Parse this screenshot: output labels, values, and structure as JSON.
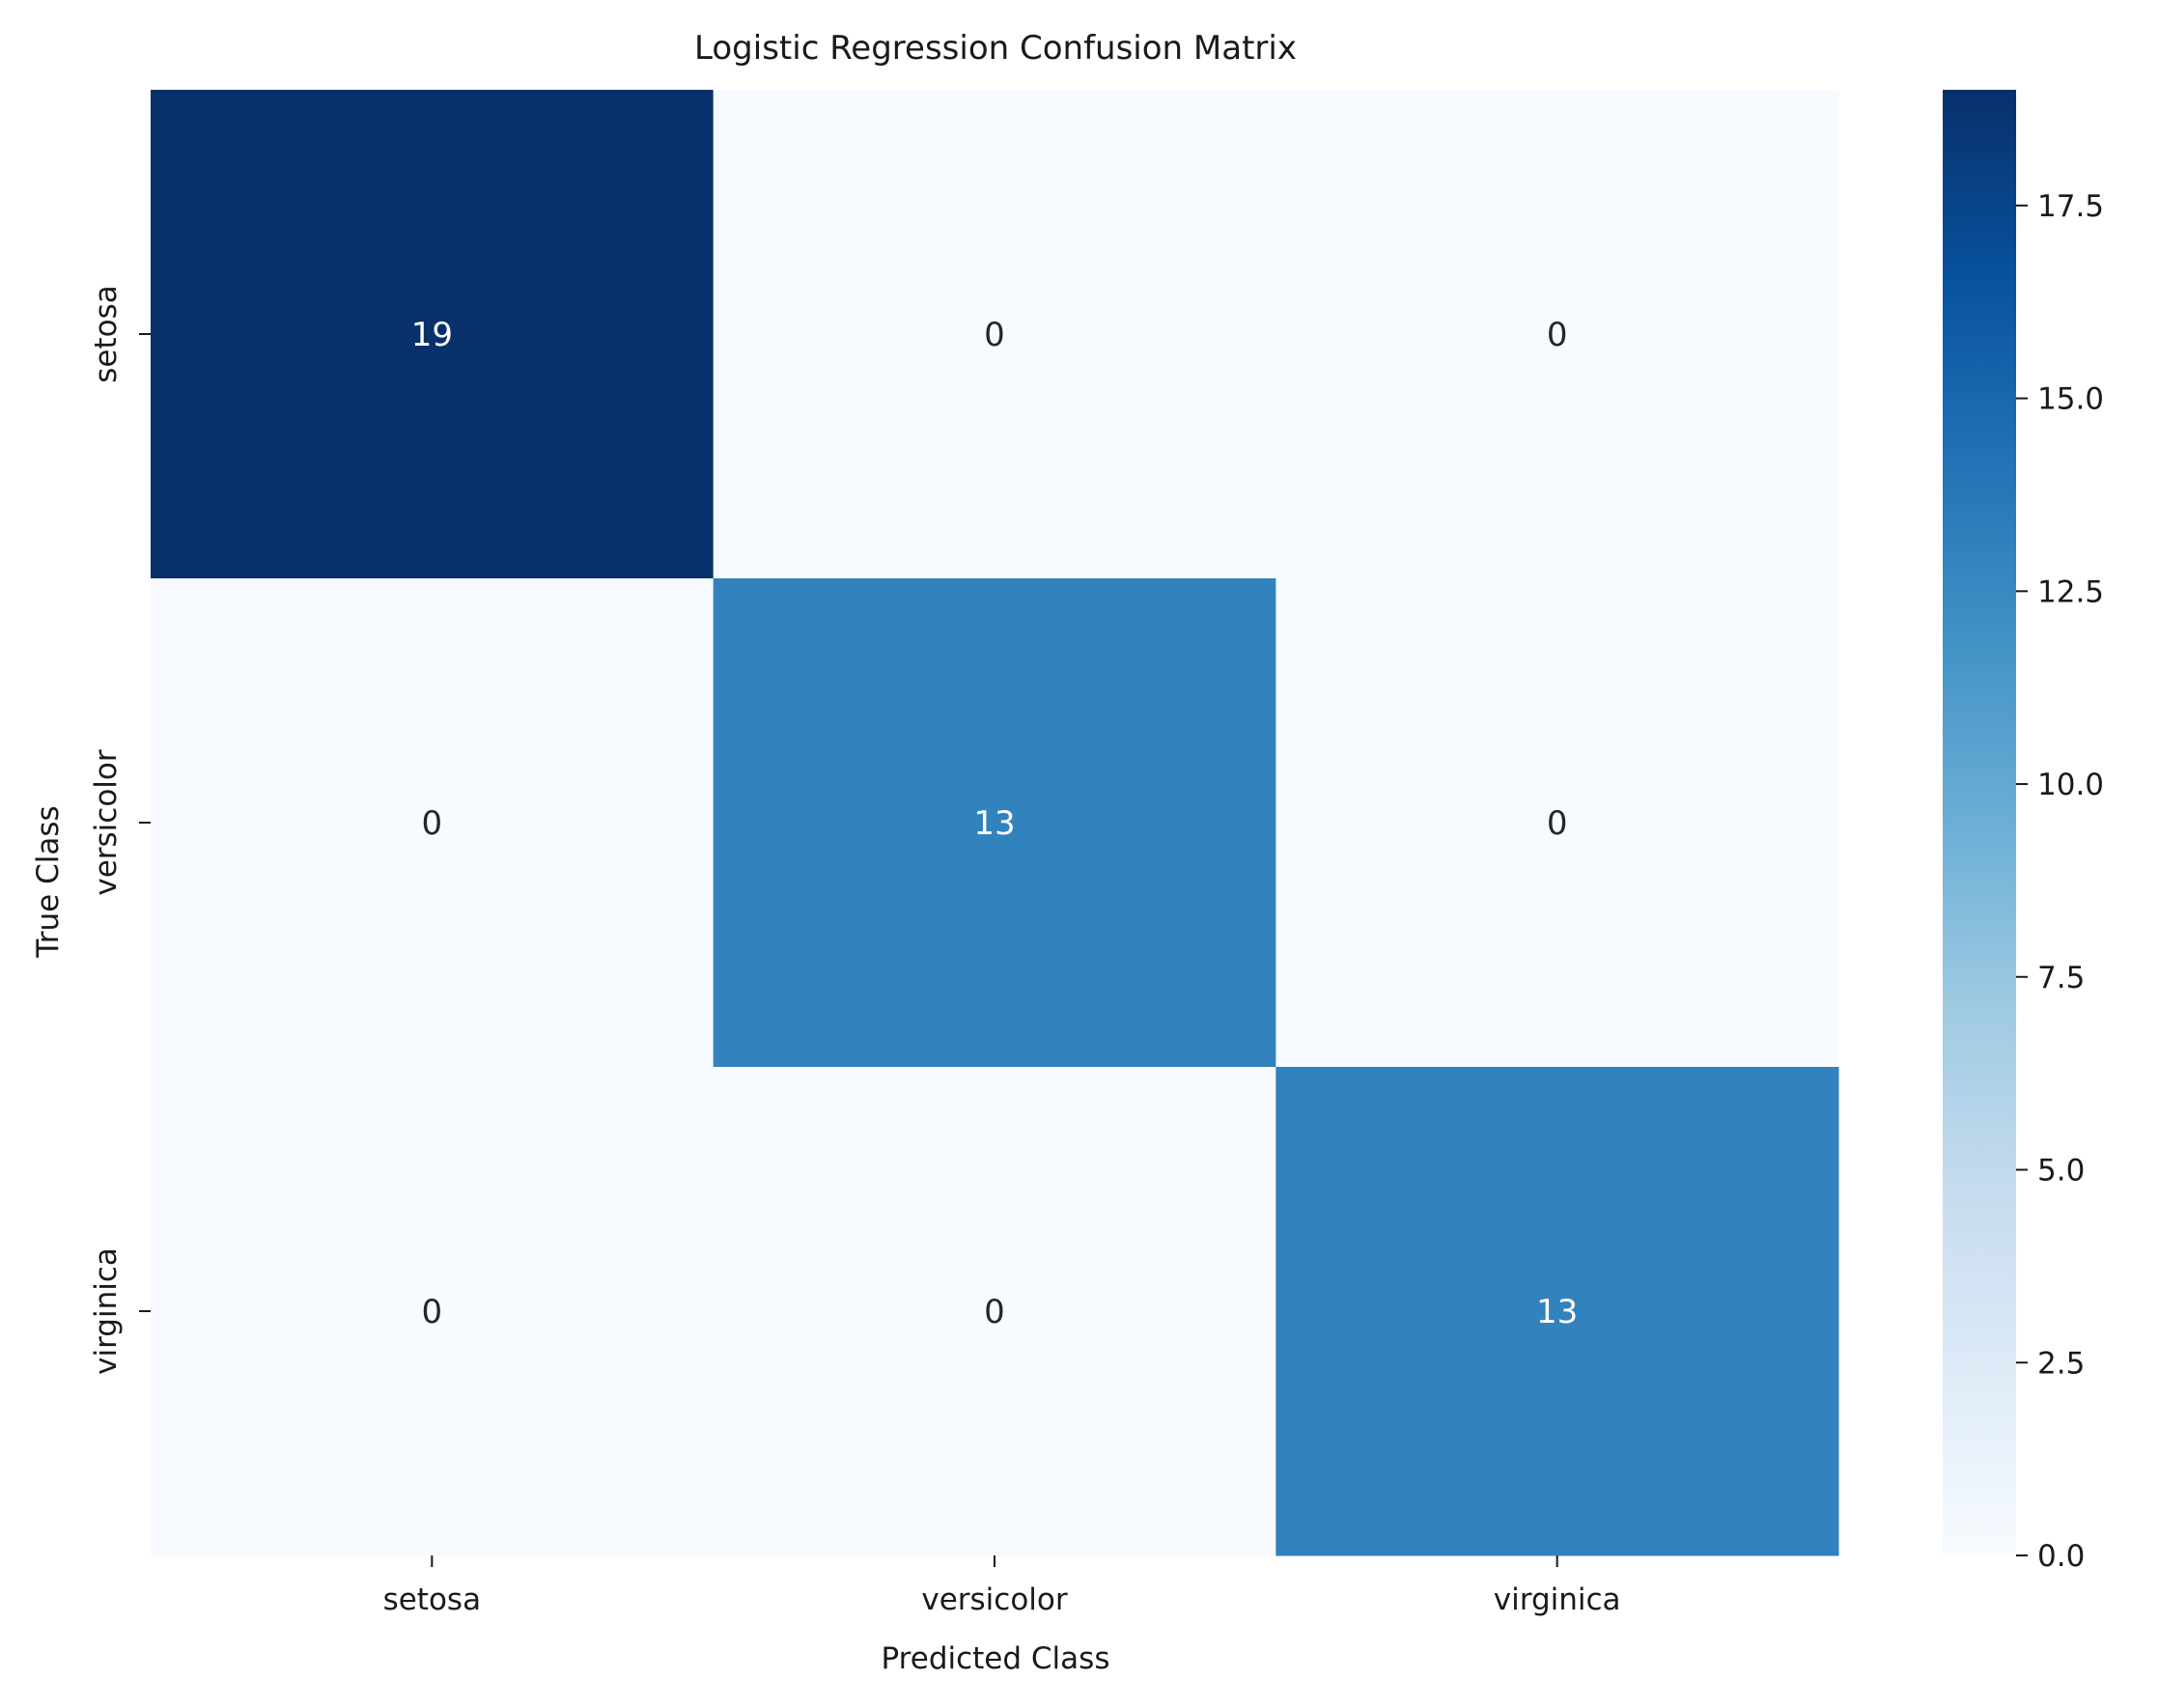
{
  "chart_data": {
    "type": "heatmap",
    "title": "Logistic Regression Confusion Matrix",
    "xlabel": "Predicted Class",
    "ylabel": "True Class",
    "x_categories": [
      "setosa",
      "versicolor",
      "virginica"
    ],
    "y_categories": [
      "setosa",
      "versicolor",
      "virginica"
    ],
    "values": [
      [
        19,
        0,
        0
      ],
      [
        0,
        13,
        0
      ],
      [
        0,
        0,
        13
      ]
    ],
    "colormap": "Blues",
    "colorbar": {
      "vmin": 0,
      "vmax": 19,
      "ticks": [
        0.0,
        2.5,
        5.0,
        7.5,
        10.0,
        12.5,
        15.0,
        17.5
      ],
      "tick_labels": [
        "0.0",
        "2.5",
        "5.0",
        "7.5",
        "10.0",
        "12.5",
        "15.0",
        "17.5"
      ]
    },
    "grid": false,
    "annotations": true
  }
}
